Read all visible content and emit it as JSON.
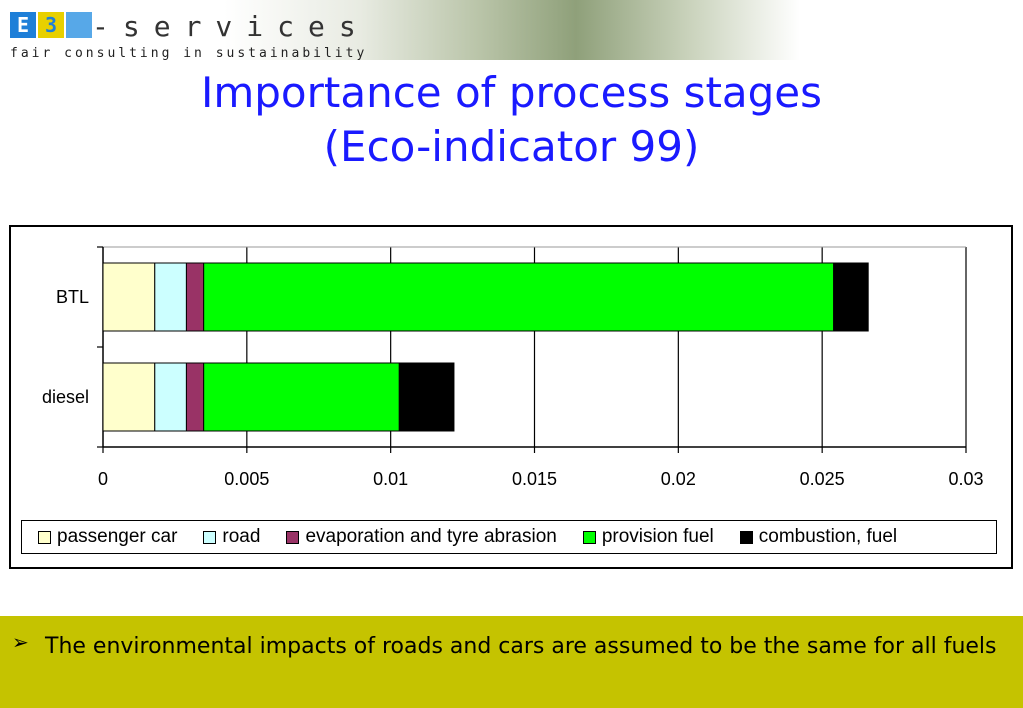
{
  "header": {
    "logo_letters": [
      "E",
      "3",
      ""
    ],
    "logo_word": "-services",
    "tagline": "fair consulting in sustainability"
  },
  "title": {
    "line1": "Importance of process stages",
    "line2": "(Eco-indicator 99)"
  },
  "chart_data": {
    "type": "bar",
    "orientation": "horizontal",
    "stacked": true,
    "categories": [
      "BTL",
      "diesel"
    ],
    "series": [
      {
        "name": "passenger car",
        "color": "#ffffcc",
        "values": [
          0.0018,
          0.0018
        ]
      },
      {
        "name": "road",
        "color": "#ccffff",
        "values": [
          0.0011,
          0.0011
        ]
      },
      {
        "name": "evaporation and tyre abrasion",
        "color": "#993366",
        "values": [
          0.0006,
          0.0006
        ]
      },
      {
        "name": "provision fuel",
        "color": "#00ff00",
        "values": [
          0.0219,
          0.0068
        ]
      },
      {
        "name": "combustion, fuel",
        "color": "#000000",
        "values": [
          0.0012,
          0.0019
        ]
      }
    ],
    "xlim": [
      0,
      0.03
    ],
    "xticks": [
      "0",
      "0.005",
      "0.01",
      "0.015",
      "0.02",
      "0.025",
      "0.03"
    ],
    "xtick_values": [
      0,
      0.005,
      0.01,
      0.015,
      0.02,
      0.025,
      0.03
    ],
    "grid": "vertical",
    "legend_position": "bottom"
  },
  "bottom": {
    "bullet": "➢",
    "text": "The environmental impacts of roads and cars are assumed to be the same for all fuels"
  }
}
